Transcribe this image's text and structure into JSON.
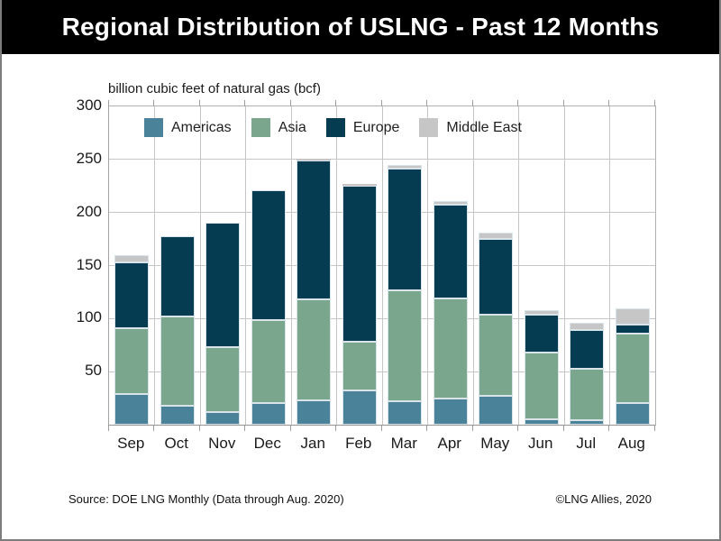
{
  "title": "Regional Distribution of USLNG - Past 12 Months",
  "y_axis_unit_label": "billion cubic feet of natural gas (bcf)",
  "footer": {
    "source": "Source: DOE LNG Monthly (Data through Aug. 2020)",
    "copyright": "©LNG Allies, 2020"
  },
  "colors": {
    "americas": "#4A8399",
    "asia": "#7AA68E",
    "europe": "#053C52",
    "middle_east": "#C6C6C6",
    "bar_stroke": "#D8E4E8",
    "gridline": "#C6C6C6",
    "axis": "#9E9E9E",
    "title_bg": "#000000",
    "title_text": "#FFFFFF"
  },
  "chart_data": {
    "type": "bar",
    "stacked": true,
    "title": "Regional Distribution of USLNG - Past 12 Months",
    "xlabel": "",
    "ylabel": "billion cubic feet of natural gas (bcf)",
    "ylim": [
      0,
      300
    ],
    "yticks": [
      50,
      100,
      150,
      200,
      250,
      300
    ],
    "grid": true,
    "legend_position": "top-left-inside",
    "categories": [
      "Sep",
      "Oct",
      "Nov",
      "Dec",
      "Jan",
      "Feb",
      "Mar",
      "Apr",
      "May",
      "Jun",
      "Jul",
      "Aug"
    ],
    "series": [
      {
        "name": "Americas",
        "color": "#4A8399",
        "values": [
          29,
          18,
          12,
          20,
          23,
          32,
          22,
          25,
          27,
          5,
          4,
          20
        ]
      },
      {
        "name": "Asia",
        "color": "#7AA68E",
        "values": [
          62,
          84,
          61,
          79,
          95,
          46,
          105,
          94,
          77,
          63,
          49,
          66
        ]
      },
      {
        "name": "Europe",
        "color": "#053C52",
        "values": [
          62,
          76,
          117,
          122,
          131,
          147,
          114,
          88,
          71,
          36,
          36,
          8
        ]
      },
      {
        "name": "Middle East",
        "color": "#C6C6C6",
        "values": [
          7,
          0,
          0,
          0,
          2,
          2,
          4,
          4,
          6,
          4,
          7,
          16
        ]
      }
    ],
    "totals": [
      160,
      178,
      190,
      221,
      251,
      227,
      245,
      211,
      181,
      108,
      96,
      110
    ]
  }
}
